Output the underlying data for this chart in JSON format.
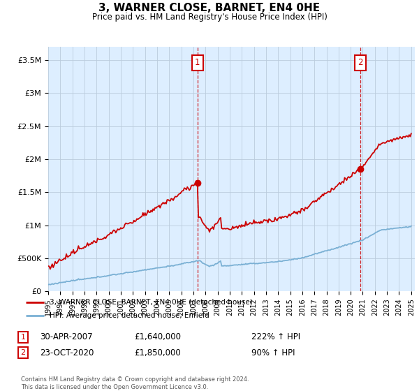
{
  "title": "3, WARNER CLOSE, BARNET, EN4 0HE",
  "subtitle": "Price paid vs. HM Land Registry's House Price Index (HPI)",
  "property_label": "3, WARNER CLOSE, BARNET, EN4 0HE (detached house)",
  "hpi_label": "HPI: Average price, detached house, Enfield",
  "annotation1_date": "30-APR-2007",
  "annotation1_price": "£1,640,000",
  "annotation1_hpi": "222% ↑ HPI",
  "annotation2_date": "23-OCT-2020",
  "annotation2_price": "£1,850,000",
  "annotation2_hpi": "90% ↑ HPI",
  "footer": "Contains HM Land Registry data © Crown copyright and database right 2024.\nThis data is licensed under the Open Government Licence v3.0.",
  "property_color": "#cc0000",
  "hpi_color": "#7ab0d4",
  "background_color": "#ddeeff",
  "grid_color": "#bbccdd",
  "ylim": [
    0,
    3700000
  ],
  "yticks": [
    0,
    500000,
    1000000,
    1500000,
    2000000,
    2500000,
    3000000,
    3500000
  ],
  "ytick_labels": [
    "£0",
    "£500K",
    "£1M",
    "£1.5M",
    "£2M",
    "£2.5M",
    "£3M",
    "£3.5M"
  ],
  "sale1_year": 2007.33,
  "sale1_value": 1640000,
  "sale2_year": 2020.81,
  "sale2_value": 1850000,
  "xlim_start": 1995,
  "xlim_end": 2025.3
}
